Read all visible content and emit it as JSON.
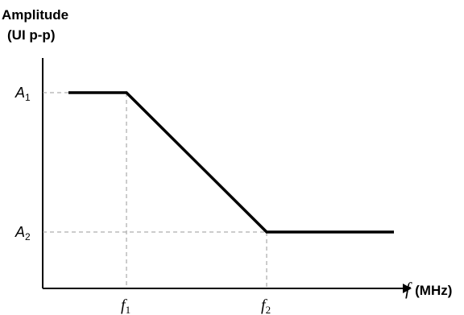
{
  "chart_data": {
    "type": "line",
    "title": "",
    "ylabel_line1": "Amplitude",
    "ylabel_line2": "(UI p-p)",
    "xlabel_symbol": "f",
    "xlabel_unit": "(MHz)",
    "x_ticks": [
      {
        "base": "f",
        "sub": "1"
      },
      {
        "base": "f",
        "sub": "2"
      }
    ],
    "y_ticks": [
      {
        "base": "A",
        "sub": "1"
      },
      {
        "base": "A",
        "sub": "2"
      }
    ],
    "series": [
      {
        "points": [
          {
            "x": "start",
            "y": "A1"
          },
          {
            "x": "f1",
            "y": "A1"
          },
          {
            "x": "f2",
            "y": "A2"
          },
          {
            "x": "end",
            "y": "A2"
          }
        ]
      }
    ],
    "reference_lines": [
      {
        "from": "A1",
        "to": "f1",
        "style": "dashed"
      },
      {
        "from": "A2",
        "to": "f2",
        "style": "dashed"
      }
    ],
    "grid": false,
    "legend": "none"
  }
}
